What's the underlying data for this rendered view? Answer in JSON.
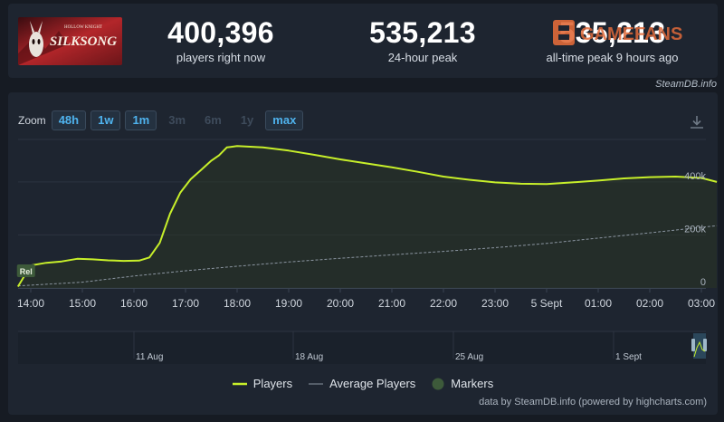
{
  "game": {
    "thumbnail_top_text": "HOLLOW KNIGHT",
    "thumbnail_title": "SILKSONG"
  },
  "stats": [
    {
      "value": "400,396",
      "label": "players right now"
    },
    {
      "value": "535,213",
      "label": "24-hour peak"
    },
    {
      "value": "535,213",
      "label": "all-time peak 9 hours ago"
    }
  ],
  "watermark": {
    "text": "GAMEFANS",
    "color": "#e06a3a"
  },
  "credit_top": "SteamDB.info",
  "zoom": {
    "label": "Zoom",
    "buttons": [
      {
        "label": "48h",
        "enabled": true
      },
      {
        "label": "1w",
        "enabled": true
      },
      {
        "label": "1m",
        "enabled": true
      },
      {
        "label": "3m",
        "enabled": false
      },
      {
        "label": "6m",
        "enabled": false
      },
      {
        "label": "1y",
        "enabled": false
      },
      {
        "label": "max",
        "enabled": true
      }
    ]
  },
  "icons": {
    "download": "download-icon"
  },
  "colors": {
    "players_line": "#c7ef2a",
    "average_line": "#8b95a1",
    "marker": "#3d5a3a",
    "area_fill": "#2a3524"
  },
  "chart_data": {
    "type": "line",
    "x_ticks": [
      "14:00",
      "15:00",
      "16:00",
      "17:00",
      "18:00",
      "19:00",
      "20:00",
      "21:00",
      "22:00",
      "23:00",
      "5 Sept",
      "01:00",
      "02:00",
      "03:00"
    ],
    "y_ticks": [
      "0",
      "200k",
      "400k"
    ],
    "ylim": [
      0,
      560000
    ],
    "series": [
      {
        "name": "Players",
        "x": [
          13.75,
          14.0,
          14.3,
          14.6,
          14.9,
          15.2,
          15.5,
          15.8,
          16.1,
          16.3,
          16.5,
          16.7,
          16.9,
          17.1,
          17.3,
          17.5,
          17.65,
          17.8,
          18.0,
          18.5,
          19.0,
          19.5,
          20.0,
          20.5,
          21.0,
          21.5,
          22.0,
          22.5,
          23.0,
          23.5,
          24.0,
          24.5,
          25.0,
          25.5,
          26.0,
          26.5,
          27.0,
          27.3
        ],
        "values": [
          5000,
          85000,
          95000,
          100000,
          110000,
          108000,
          104000,
          102000,
          103000,
          115000,
          170000,
          280000,
          360000,
          410000,
          445000,
          480000,
          500000,
          530000,
          535000,
          530000,
          518000,
          502000,
          485000,
          470000,
          455000,
          438000,
          420000,
          408000,
          398000,
          393000,
          392000,
          398000,
          405000,
          413000,
          418000,
          420000,
          415000,
          400000
        ]
      },
      {
        "name": "Average Players",
        "x": [
          13.75,
          15.0,
          16.0,
          17.0,
          18.0,
          19.0,
          20.0,
          21.0,
          22.0,
          23.0,
          24.0,
          25.0,
          26.0,
          27.3
        ],
        "values": [
          8000,
          22000,
          45000,
          65000,
          82000,
          98000,
          112000,
          125000,
          138000,
          152000,
          168000,
          188000,
          208000,
          235000
        ]
      }
    ],
    "markers": [
      {
        "label": "Rel",
        "x": 13.75
      }
    ],
    "navigator_labels": [
      "11 Aug",
      "18 Aug",
      "25 Aug",
      "1 Sept"
    ],
    "legend": [
      "Players",
      "Average Players",
      "Markers"
    ],
    "legend_position": "bottom-center",
    "grid": true
  },
  "credit_bottom": "data by SteamDB.info (powered by highcharts.com)"
}
